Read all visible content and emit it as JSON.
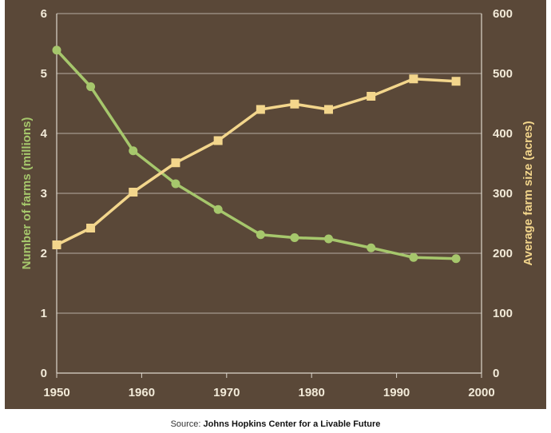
{
  "colors": {
    "background": "#5a4838",
    "grid": "#b5aca2",
    "axis": "#ddd6cc",
    "farms_series": "#a6c76c",
    "size_series": "#f3d68c",
    "tick_text": "#f2ead8",
    "left_title": "#a6c76c",
    "right_title": "#f3d68c"
  },
  "source": {
    "prefix": "Source:",
    "name": "Johns Hopkins Center for a Livable Future"
  },
  "chart_data": {
    "type": "line",
    "title": "",
    "xlabel": "",
    "ylabel": "Number of farms (millions)",
    "y2label": "Average farm size (acres)",
    "xlim": [
      1950,
      2000
    ],
    "ylim": [
      0,
      6
    ],
    "y2lim": [
      0,
      600
    ],
    "x_ticks": [
      "1950",
      "1960",
      "1970",
      "1980",
      "1990",
      "2000"
    ],
    "y_ticks": [
      "0",
      "1",
      "2",
      "3",
      "4",
      "5",
      "6"
    ],
    "y2_ticks": [
      "0",
      "100",
      "200",
      "300",
      "400",
      "500",
      "600"
    ],
    "grid": true,
    "legend": "none",
    "series": [
      {
        "axis": "left",
        "marker": "circle",
        "x": [
          1950,
          1954,
          1959,
          1964,
          1969,
          1974,
          1978,
          1982,
          1987,
          1992,
          1997
        ],
        "values": [
          5.39,
          4.78,
          3.71,
          3.16,
          2.73,
          2.31,
          2.26,
          2.24,
          2.09,
          1.93,
          1.91
        ]
      },
      {
        "axis": "right",
        "marker": "square",
        "x": [
          1950,
          1954,
          1959,
          1964,
          1969,
          1974,
          1978,
          1982,
          1987,
          1992,
          1997
        ],
        "values": [
          214,
          242,
          302,
          351,
          388,
          440,
          449,
          440,
          462,
          491,
          487
        ]
      }
    ]
  }
}
